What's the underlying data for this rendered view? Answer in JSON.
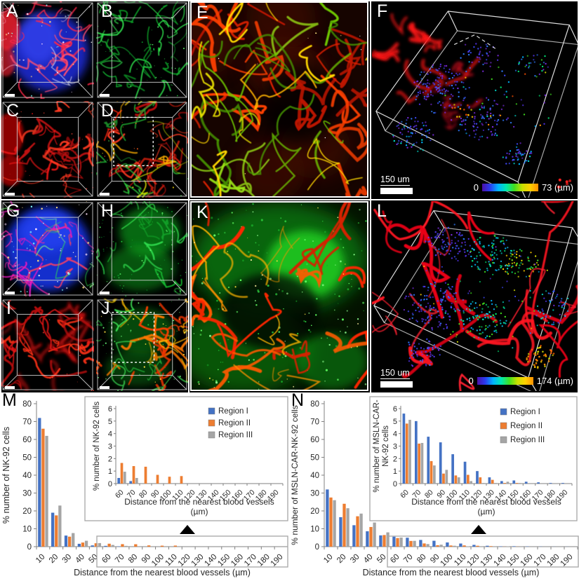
{
  "micro_panels": [
    {
      "label": "A",
      "kind": "composite blue + red vessels volume"
    },
    {
      "label": "B",
      "kind": "green channel volume"
    },
    {
      "label": "C",
      "kind": "red channel volume"
    },
    {
      "label": "D",
      "kind": "red-green merge volume with dashed ROI"
    },
    {
      "label": "E",
      "kind": "enlarged red-green merge of ROI in D"
    },
    {
      "label": "F",
      "kind": "3D depth-coded point cloud",
      "scale_bar": "150 um",
      "colorbar_min": "0",
      "colorbar_max": "73 (µm)"
    },
    {
      "label": "G",
      "kind": "composite blue + red vessels volume"
    },
    {
      "label": "H",
      "kind": "green channel volume"
    },
    {
      "label": "I",
      "kind": "red channel volume"
    },
    {
      "label": "J",
      "kind": "red-green merge volume with dashed ROI"
    },
    {
      "label": "K",
      "kind": "enlarged red-green merge of ROI in J"
    },
    {
      "label": "L",
      "kind": "3D depth-coded point cloud",
      "scale_bar": "150 um",
      "colorbar_min": "0",
      "colorbar_max": "174 (µm)"
    }
  ],
  "chart_panel_labels": {
    "m": "M",
    "n": "N"
  },
  "colors": {
    "region1": "#4472c4",
    "region2": "#ed7d31",
    "region3": "#a5a5a5",
    "depth_palette": [
      "#4b0fa8",
      "#2a3cf0",
      "#00b4ff",
      "#00e8b0",
      "#40e020",
      "#c8e000",
      "#ffd000",
      "#ff9000"
    ]
  },
  "chart_data": [
    {
      "type": "bar",
      "panel": "M",
      "title": "",
      "categories": [
        "10",
        "20",
        "30",
        "40",
        "50",
        "60",
        "70",
        "80",
        "90",
        "100",
        "110",
        "120",
        "130",
        "140",
        "150",
        "160",
        "170",
        "180",
        "190"
      ],
      "series": [
        {
          "name": "Region I",
          "color": "#4472c4",
          "values": [
            72,
            19,
            6.2,
            1.6,
            0.7,
            0.45,
            0.2,
            0,
            0,
            0,
            0,
            0,
            0,
            0,
            0,
            0,
            0,
            0,
            0
          ]
        },
        {
          "name": "Region II",
          "color": "#ed7d31",
          "values": [
            66,
            17.5,
            5.6,
            2.3,
            1.9,
            1.65,
            1.4,
            1.35,
            0.7,
            0.55,
            0.6,
            0,
            0,
            0,
            0,
            0,
            0,
            0,
            0
          ]
        },
        {
          "name": "Region III",
          "color": "#a5a5a5",
          "values": [
            62,
            23,
            7.6,
            3.3,
            2.0,
            0.95,
            0.45,
            0,
            0,
            0,
            0,
            0,
            0,
            0,
            0,
            0,
            0,
            0,
            0
          ]
        }
      ],
      "xlabel": "Distance from the nearest blood vessels (µm)",
      "ylabel": "% number of NK-92 cells",
      "ylim": [
        0,
        80
      ],
      "ytick_step": 10,
      "grid": false,
      "legend_position": "inset-top-right",
      "inset": {
        "category_start_index": 5,
        "ylim": [
          0,
          6
        ],
        "ytick_step": 1,
        "ylabel_lines": [
          "% number of NK-92 cells"
        ],
        "xlabel_lines": [
          "Distance from the nearest blood vessels",
          "(µm)"
        ]
      }
    },
    {
      "type": "bar",
      "panel": "N",
      "title": "",
      "categories": [
        "10",
        "20",
        "30",
        "40",
        "50",
        "60",
        "70",
        "80",
        "90",
        "100",
        "110",
        "120",
        "130",
        "140",
        "150",
        "160",
        "170",
        "180",
        "190"
      ],
      "series": [
        {
          "name": "Region I",
          "color": "#4472c4",
          "values": [
            32,
            16.5,
            12,
            8.6,
            6.3,
            5.6,
            5.0,
            3.75,
            3.3,
            2.35,
            1.75,
            1.0,
            0.5,
            0.2,
            0.25,
            0.15,
            0.1,
            0.05,
            0.05
          ]
        },
        {
          "name": "Region II",
          "color": "#ed7d31",
          "values": [
            27.5,
            24,
            17,
            11,
            6.5,
            4.8,
            3.2,
            1.8,
            0.8,
            0.65,
            0.7,
            0.5,
            0.3,
            0.05,
            0.05,
            0,
            0,
            0,
            0
          ]
        },
        {
          "name": "Region III",
          "color": "#a5a5a5",
          "values": [
            26,
            21.5,
            18.5,
            13.5,
            8.0,
            5.1,
            3.25,
            1.45,
            1.1,
            0.5,
            0.2,
            0.05,
            0.05,
            0.15,
            0.05,
            0,
            0,
            0,
            0
          ]
        }
      ],
      "xlabel": "Distance from the nearest blood vessels (µm)",
      "ylabel": "% number of MSLN-CAR-NK-92 cells",
      "ylim": [
        0,
        80
      ],
      "ytick_step": 10,
      "grid": false,
      "legend_position": "inset-top-right",
      "inset": {
        "category_start_index": 5,
        "ylim": [
          0,
          6
        ],
        "ytick_step": 1,
        "ylabel_lines": [
          "% number of MSLN-CAR-",
          "NK-92 cells"
        ],
        "xlabel_lines": [
          "Distance from the nearest blood vessels",
          "(µm)"
        ]
      }
    }
  ]
}
